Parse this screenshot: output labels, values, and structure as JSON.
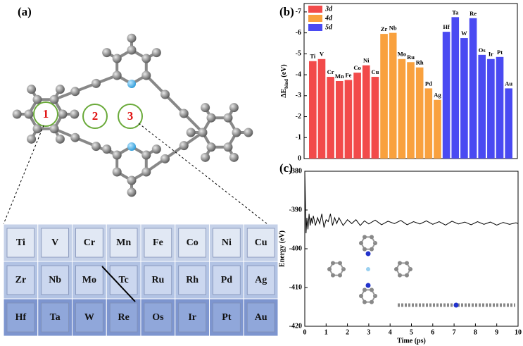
{
  "panel_a": {
    "label": "(a)",
    "sites": [
      "1",
      "2",
      "3"
    ],
    "table": {
      "rows": [
        [
          "Ti",
          "V",
          "Cr",
          "Mn",
          "Fe",
          "Co",
          "Ni",
          "Cu"
        ],
        [
          "Zr",
          "Nb",
          "Mo",
          "Tc",
          "Ru",
          "Rh",
          "Pd",
          "Ag"
        ],
        [
          "Hf",
          "Ta",
          "W",
          "Re",
          "Os",
          "Ir",
          "Pt",
          "Au"
        ]
      ]
    }
  },
  "chart_data": [
    {
      "type": "bar",
      "label": "(b)",
      "ylabel": [
        "ΔE",
        "bind",
        "(eV)"
      ],
      "ylim": [
        0,
        -7.4
      ],
      "yticks": [
        0,
        -1,
        -2,
        -3,
        -4,
        -5,
        -6,
        -7
      ],
      "series": [
        {
          "name": "3d",
          "color": "#f24a4a",
          "categories": [
            "Ti",
            "V",
            "Cr",
            "Mn",
            "Fe",
            "Co",
            "Ni",
            "Cu"
          ],
          "values": [
            -4.65,
            -4.75,
            -3.9,
            -3.7,
            -3.75,
            -4.1,
            -4.45,
            -3.9
          ]
        },
        {
          "name": "4d",
          "color": "#f9a13e",
          "categories": [
            "Zr",
            "Nb",
            "Mo",
            "Ru",
            "Rh",
            "Pd",
            "Ag"
          ],
          "values": [
            -5.95,
            -6.0,
            -4.75,
            -4.6,
            -4.35,
            -3.35,
            -2.8
          ]
        },
        {
          "name": "5d",
          "color": "#4a4af2",
          "categories": [
            "Hf",
            "Ta",
            "W",
            "Re",
            "Os",
            "Ir",
            "Pt",
            "Au"
          ],
          "values": [
            -6.05,
            -6.75,
            -5.75,
            -6.7,
            -4.95,
            -4.75,
            -4.85,
            -3.35
          ]
        }
      ]
    },
    {
      "type": "line",
      "label": "(c)",
      "xlabel": "Time (ps)",
      "ylabel": "Energy (eV)",
      "color": "#000000",
      "xlim": [
        0,
        10
      ],
      "xticks": [
        0,
        1,
        2,
        3,
        4,
        5,
        6,
        7,
        8,
        9,
        10
      ],
      "ylim": [
        -420,
        -380
      ],
      "yticks": [
        -420,
        -410,
        -400,
        -390,
        -380
      ],
      "x": [
        0,
        0.03,
        0.06,
        0.1,
        0.15,
        0.2,
        0.25,
        0.3,
        0.35,
        0.4,
        0.5,
        0.6,
        0.7,
        0.8,
        0.9,
        1.0,
        1.1,
        1.2,
        1.3,
        1.4,
        1.5,
        1.6,
        1.8,
        2.0,
        2.2,
        2.4,
        2.6,
        2.8,
        3.0,
        3.3,
        3.6,
        3.9,
        4.2,
        4.5,
        4.8,
        5.1,
        5.4,
        5.7,
        6.0,
        6.3,
        6.6,
        6.9,
        7.2,
        7.5,
        7.8,
        8.1,
        8.4,
        8.7,
        9.0,
        9.3,
        9.6,
        9.9,
        10
      ],
      "values": [
        -380,
        -388,
        -396,
        -392,
        -395,
        -391,
        -394,
        -392,
        -393.5,
        -391.5,
        -394,
        -392,
        -393.5,
        -391,
        -394.5,
        -392.5,
        -393,
        -391,
        -394,
        -392,
        -393.5,
        -392,
        -394,
        -392.5,
        -393.5,
        -392.5,
        -394,
        -392.8,
        -393.6,
        -392.6,
        -393.8,
        -392.9,
        -393.5,
        -392.7,
        -393.8,
        -393,
        -393.6,
        -392.8,
        -393.7,
        -393,
        -393.9,
        -392.9,
        -393.6,
        -393.1,
        -393.8,
        -393,
        -393.7,
        -393.1,
        -393.9,
        -393.2,
        -393.7,
        -393.3,
        -393.5
      ]
    }
  ]
}
